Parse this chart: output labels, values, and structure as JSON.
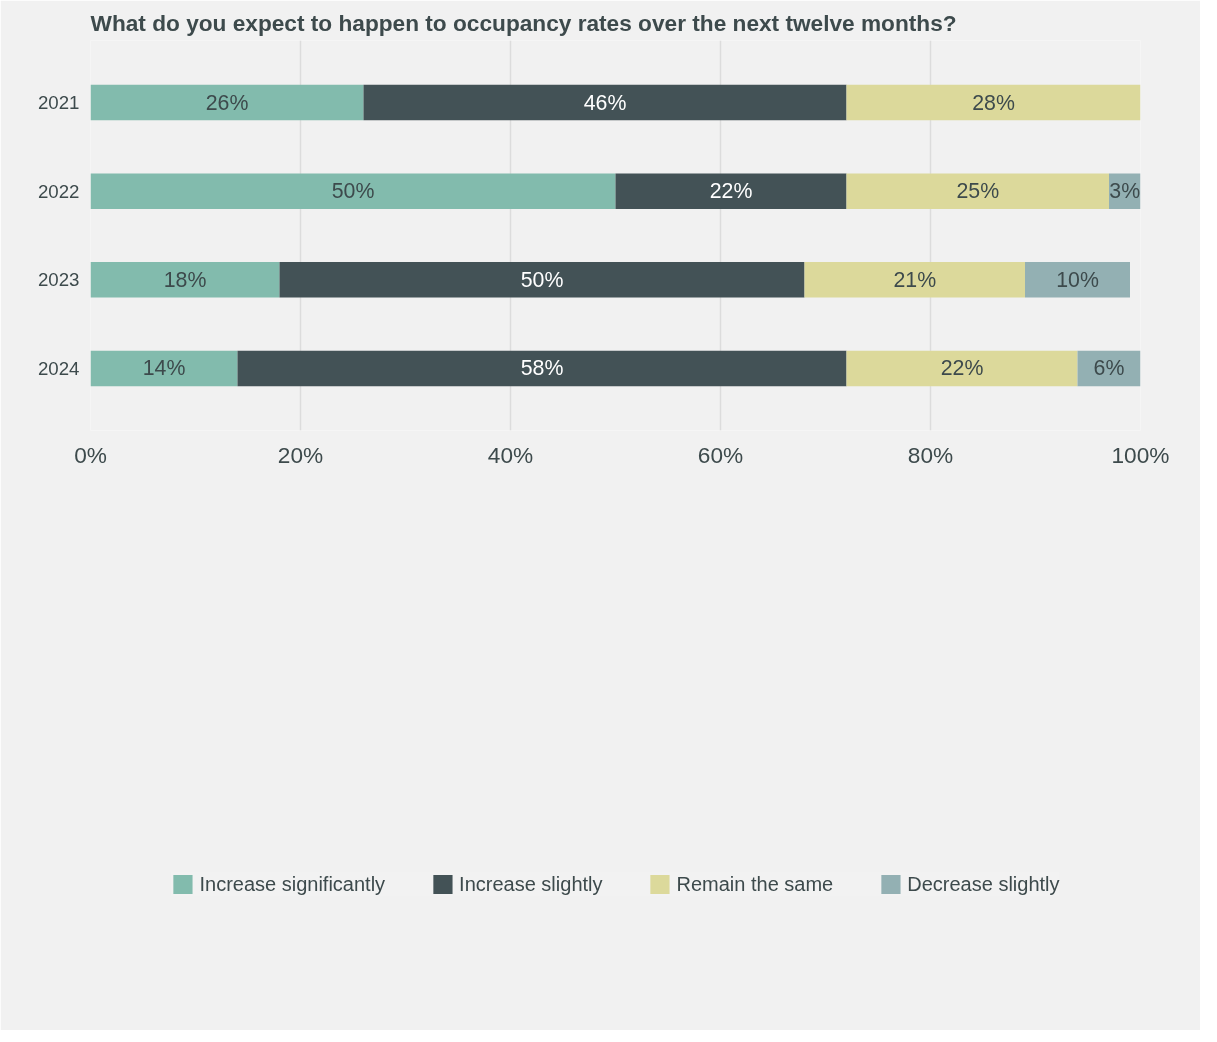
{
  "chart_data": {
    "type": "bar",
    "orientation": "horizontal",
    "stacked": true,
    "title": "What do you expect to happen to occupancy rates over the next twelve months?",
    "categories": [
      "2021",
      "2022",
      "2023",
      "2024"
    ],
    "series": [
      {
        "name": "Increase significantly",
        "color": "#82bbad",
        "values": [
          26,
          50,
          18,
          14
        ],
        "value_labels": [
          "26%",
          "50%",
          "18%",
          "14%"
        ]
      },
      {
        "name": "Increase slightly",
        "color": "#435256",
        "values": [
          46,
          22,
          50,
          58
        ],
        "value_labels": [
          "46%",
          "22%",
          "50%",
          "58%"
        ]
      },
      {
        "name": "Remain the same",
        "color": "#dcd99b",
        "values": [
          28,
          25,
          21,
          22
        ],
        "value_labels": [
          "28%",
          "25%",
          "21%",
          "22%"
        ]
      },
      {
        "name": "Decrease slightly",
        "color": "#93b0b3",
        "values": [
          null,
          3,
          10,
          6
        ],
        "value_labels": [
          null,
          "3%",
          "10%",
          "6%"
        ]
      }
    ],
    "xlim": [
      0,
      100
    ],
    "xticks": [
      {
        "value": 0,
        "label": "0%"
      },
      {
        "value": 20,
        "label": "20%"
      },
      {
        "value": 40,
        "label": "40%"
      },
      {
        "value": 60,
        "label": "60%"
      },
      {
        "value": 80,
        "label": "80%"
      },
      {
        "value": 100,
        "label": "100%"
      }
    ],
    "grid": "x",
    "legend": "bottom"
  }
}
